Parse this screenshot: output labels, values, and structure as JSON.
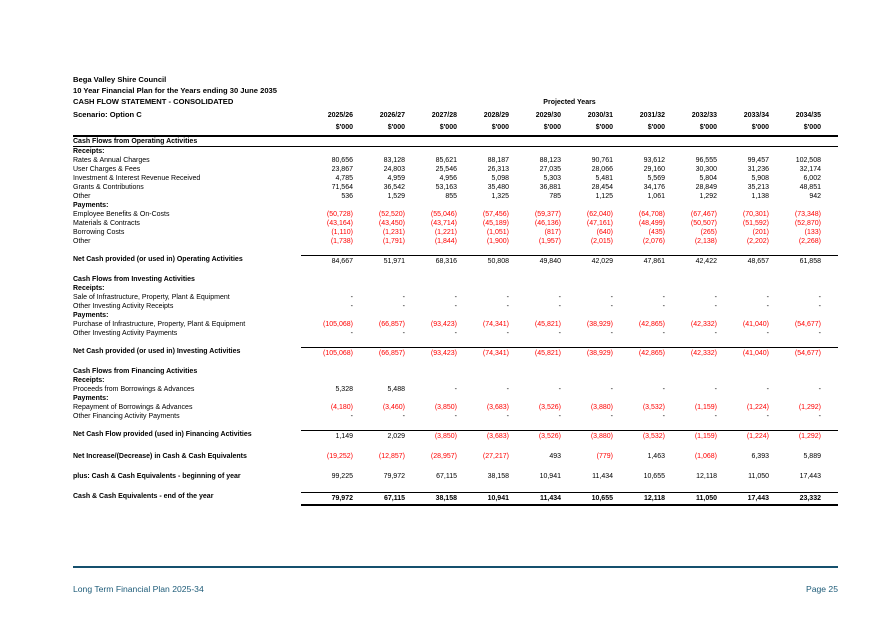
{
  "header": {
    "org": "Bega Valley Shire Council",
    "subtitle": "10 Year Financial Plan for the Years ending 30 June 2035",
    "statement_title": "CASH FLOW STATEMENT - CONSOLIDATED",
    "scenario": "Scenario: Option C",
    "projected_years_label": "Projected Years"
  },
  "table": {
    "years": [
      "2025/26",
      "2026/27",
      "2027/28",
      "2028/29",
      "2029/30",
      "2030/31",
      "2031/32",
      "2032/33",
      "2033/34",
      "2034/35"
    ],
    "unit": "$'000",
    "rows": [
      {
        "style": "sectionU",
        "label": "Cash Flows from Operating Activities"
      },
      {
        "style": "subhead",
        "label": "Receipts:"
      },
      {
        "style": "data",
        "label": "Rates & Annual Charges",
        "values": [
          "80,656",
          "83,128",
          "85,621",
          "88,187",
          "88,123",
          "90,761",
          "93,612",
          "96,555",
          "99,457",
          "102,508"
        ]
      },
      {
        "style": "data",
        "label": "User Charges & Fees",
        "values": [
          "23,867",
          "24,803",
          "25,546",
          "26,313",
          "27,035",
          "28,066",
          "29,160",
          "30,300",
          "31,236",
          "32,174"
        ]
      },
      {
        "style": "data",
        "label": "Investment & Interest Revenue Received",
        "values": [
          "4,785",
          "4,959",
          "4,956",
          "5,098",
          "5,303",
          "5,481",
          "5,569",
          "5,804",
          "5,908",
          "6,002"
        ]
      },
      {
        "style": "data",
        "label": "Grants & Contributions",
        "values": [
          "71,564",
          "36,542",
          "53,163",
          "35,480",
          "36,881",
          "28,454",
          "34,176",
          "28,849",
          "35,213",
          "48,851"
        ]
      },
      {
        "style": "data",
        "label": "Other",
        "values": [
          "536",
          "1,529",
          "855",
          "1,325",
          "785",
          "1,125",
          "1,061",
          "1,292",
          "1,138",
          "942"
        ]
      },
      {
        "style": "subhead",
        "label": "Payments:"
      },
      {
        "style": "data",
        "label": "Employee Benefits & On-Costs",
        "values": [
          "(50,728)",
          "(52,520)",
          "(55,046)",
          "(57,456)",
          "(59,377)",
          "(62,040)",
          "(64,708)",
          "(67,467)",
          "(70,301)",
          "(73,348)"
        ]
      },
      {
        "style": "data",
        "label": "Materials & Contracts",
        "values": [
          "(43,164)",
          "(43,450)",
          "(43,714)",
          "(45,189)",
          "(46,136)",
          "(47,161)",
          "(48,499)",
          "(50,507)",
          "(51,592)",
          "(52,870)"
        ]
      },
      {
        "style": "data",
        "label": "Borrowing Costs",
        "values": [
          "(1,110)",
          "(1,231)",
          "(1,221)",
          "(1,051)",
          "(817)",
          "(640)",
          "(435)",
          "(265)",
          "(201)",
          "(133)"
        ]
      },
      {
        "style": "data",
        "label": "Other",
        "values": [
          "(1,738)",
          "(1,791)",
          "(1,844)",
          "(1,900)",
          "(1,957)",
          "(2,015)",
          "(2,076)",
          "(2,138)",
          "(2,202)",
          "(2,268)"
        ]
      },
      {
        "style": "net",
        "label": "Net Cash provided (or used in) Operating Activities",
        "values": [
          "84,667",
          "51,971",
          "68,316",
          "50,808",
          "49,840",
          "42,029",
          "47,861",
          "42,422",
          "48,657",
          "61,858"
        ]
      },
      {
        "style": "section",
        "label": "Cash Flows from Investing Activities"
      },
      {
        "style": "subhead",
        "label": "Receipts:"
      },
      {
        "style": "data",
        "label": "Sale of Infrastructure, Property, Plant & Equipment",
        "values": [
          "-",
          "-",
          "-",
          "-",
          "-",
          "-",
          "-",
          "-",
          "-",
          "-"
        ]
      },
      {
        "style": "data",
        "label": "Other Investing Activity Receipts",
        "values": [
          "-",
          "-",
          "-",
          "-",
          "-",
          "-",
          "-",
          "-",
          "-",
          "-"
        ]
      },
      {
        "style": "subhead",
        "label": "Payments:"
      },
      {
        "style": "data",
        "label": "Purchase of Infrastructure, Property, Plant & Equipment",
        "values": [
          "(105,068)",
          "(66,857)",
          "(93,423)",
          "(74,341)",
          "(45,821)",
          "(38,929)",
          "(42,865)",
          "(42,332)",
          "(41,040)",
          "(54,677)"
        ]
      },
      {
        "style": "data",
        "label": "Other Investing Activity Payments",
        "values": [
          "-",
          "-",
          "-",
          "-",
          "-",
          "-",
          "-",
          "-",
          "-",
          "-"
        ]
      },
      {
        "style": "net",
        "label": "Net Cash provided (or used in) Investing Activities",
        "values": [
          "(105,068)",
          "(66,857)",
          "(93,423)",
          "(74,341)",
          "(45,821)",
          "(38,929)",
          "(42,865)",
          "(42,332)",
          "(41,040)",
          "(54,677)"
        ]
      },
      {
        "style": "section",
        "label": "Cash Flows from Financing Activities"
      },
      {
        "style": "subhead",
        "label": "Receipts:"
      },
      {
        "style": "data",
        "label": "Proceeds from Borrowings & Advances",
        "values": [
          "5,328",
          "5,488",
          "-",
          "-",
          "-",
          "-",
          "-",
          "-",
          "-",
          "-"
        ]
      },
      {
        "style": "subhead",
        "label": "Payments:"
      },
      {
        "style": "data",
        "label": "Repayment of Borrowings & Advances",
        "values": [
          "(4,180)",
          "(3,460)",
          "(3,850)",
          "(3,683)",
          "(3,526)",
          "(3,880)",
          "(3,532)",
          "(1,159)",
          "(1,224)",
          "(1,292)"
        ]
      },
      {
        "style": "data",
        "label": "Other Financing Activity Payments",
        "values": [
          "-",
          "-",
          "-",
          "-",
          "-",
          "-",
          "-",
          "-",
          "-",
          "-"
        ]
      },
      {
        "style": "net",
        "label": "Net Cash Flow provided (used in) Financing Activities",
        "values": [
          "1,149",
          "2,029",
          "(3,850)",
          "(3,683)",
          "(3,526)",
          "(3,880)",
          "(3,532)",
          "(1,159)",
          "(1,224)",
          "(1,292)"
        ]
      },
      {
        "style": "total",
        "label": "Net Increase/(Decrease) in Cash & Cash Equivalents",
        "values": [
          "(19,252)",
          "(12,857)",
          "(28,957)",
          "(27,217)",
          "493",
          "(779)",
          "1,463",
          "(1,068)",
          "6,393",
          "5,889"
        ]
      },
      {
        "style": "total",
        "label": "plus: Cash & Cash Equivalents - beginning of year",
        "values": [
          "99,225",
          "79,972",
          "67,115",
          "38,158",
          "10,941",
          "11,434",
          "10,655",
          "12,118",
          "11,050",
          "17,443"
        ]
      },
      {
        "style": "final",
        "label": "Cash & Cash Equivalents - end of the year",
        "values": [
          "79,972",
          "67,115",
          "38,158",
          "10,941",
          "11,434",
          "10,655",
          "12,118",
          "11,050",
          "17,443",
          "23,332"
        ]
      }
    ]
  },
  "footer": {
    "left": "Long Term Financial Plan 2025-34",
    "right": "Page 25"
  },
  "colors": {
    "negative": "#ff0000",
    "footer_text": "#1d5b78",
    "footer_line": "#15506d"
  }
}
